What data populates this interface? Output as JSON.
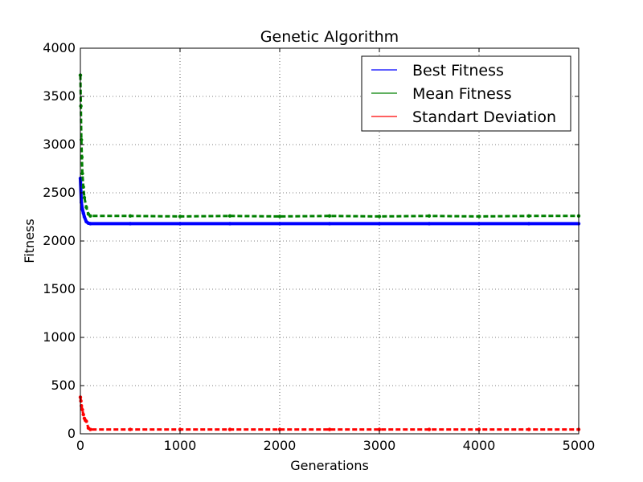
{
  "chart_data": {
    "type": "scatter",
    "title": "Genetic Algorithm",
    "xlabel": "Generations",
    "ylabel": "Fitness",
    "xlim": [
      0,
      5000
    ],
    "ylim": [
      0,
      4000
    ],
    "grid": true,
    "legend_position": "top-right",
    "x_ticks": [
      0,
      1000,
      2000,
      3000,
      4000,
      5000
    ],
    "y_ticks": [
      0,
      500,
      1000,
      1500,
      2000,
      2500,
      3000,
      3500,
      4000
    ],
    "x_tick_labels": [
      "0",
      "1000",
      "2000",
      "3000",
      "4000",
      "5000"
    ],
    "y_tick_labels": [
      "0",
      "500",
      "1000",
      "1500",
      "2000",
      "2500",
      "3000",
      "3500",
      "4000"
    ],
    "series": [
      {
        "name": "Best Fitness",
        "color": "#0000ff",
        "x": [
          0,
          10,
          20,
          30,
          40,
          60,
          80,
          100,
          500,
          1000,
          1500,
          2000,
          2500,
          3000,
          3500,
          4000,
          4500,
          5000
        ],
        "values": [
          2650,
          2400,
          2330,
          2290,
          2250,
          2200,
          2185,
          2180,
          2180,
          2180,
          2180,
          2180,
          2180,
          2180,
          2180,
          2180,
          2180,
          2180
        ]
      },
      {
        "name": "Mean Fitness",
        "color": "#008000",
        "x": [
          0,
          5,
          10,
          15,
          20,
          30,
          40,
          60,
          80,
          100,
          500,
          1000,
          1500,
          2000,
          2500,
          3000,
          3500,
          4000,
          4500,
          5000
        ],
        "values": [
          3720,
          3400,
          3050,
          2870,
          2700,
          2560,
          2450,
          2350,
          2280,
          2260,
          2260,
          2255,
          2260,
          2255,
          2260,
          2255,
          2260,
          2255,
          2260,
          2260
        ]
      },
      {
        "name": "Standart Deviation",
        "color": "#ff0000",
        "x": [
          0,
          5,
          10,
          20,
          30,
          40,
          50,
          60,
          80,
          100,
          500,
          1000,
          1500,
          2000,
          2500,
          3000,
          3500,
          4000,
          4500,
          5000
        ],
        "values": [
          380,
          340,
          290,
          250,
          200,
          160,
          140,
          130,
          60,
          45,
          45,
          45,
          45,
          45,
          45,
          45,
          45,
          45,
          45,
          45
        ]
      }
    ]
  }
}
